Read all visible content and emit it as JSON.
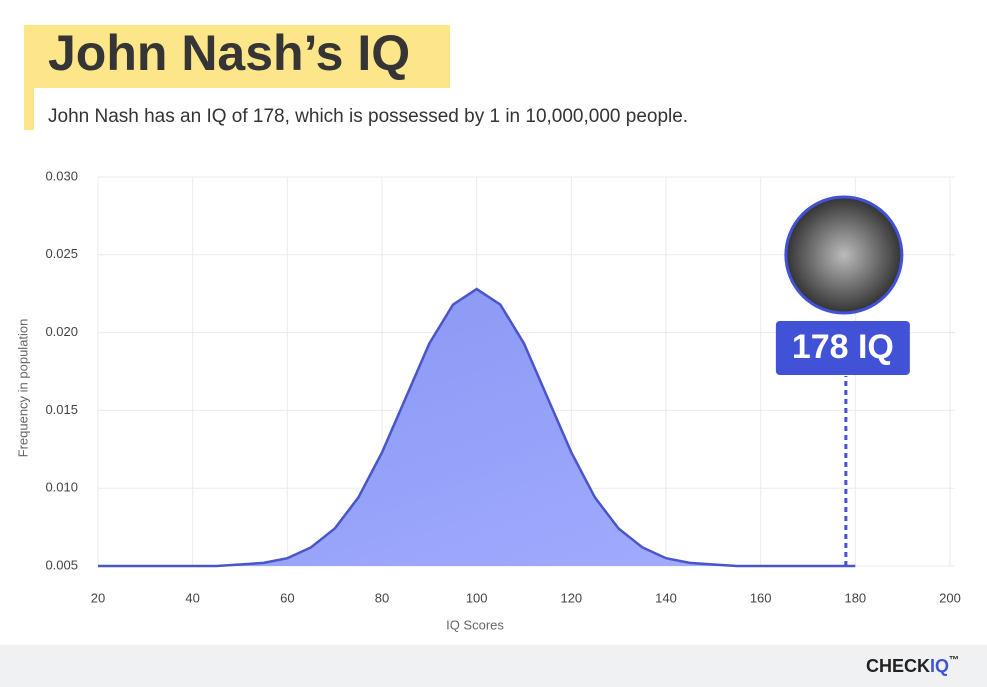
{
  "chart_data": {
    "type": "area",
    "title": "John Nash’s IQ",
    "subtitle": "John Nash has an IQ of 178, which is possessed by 1 in 10,000,000 people.",
    "x_label": "IQ Scores",
    "y_label": "Frequency in population",
    "x": [
      20,
      25,
      30,
      35,
      40,
      45,
      50,
      55,
      60,
      65,
      70,
      75,
      80,
      85,
      90,
      95,
      100,
      105,
      110,
      115,
      120,
      125,
      130,
      135,
      140,
      145,
      150,
      155,
      160,
      165,
      170,
      175,
      180
    ],
    "values": [
      0.005,
      0.005,
      0.005,
      0.005,
      0.005,
      0.005,
      0.0051,
      0.0052,
      0.0055,
      0.0062,
      0.0074,
      0.0094,
      0.0123,
      0.0158,
      0.0193,
      0.0218,
      0.0228,
      0.0218,
      0.0193,
      0.0158,
      0.0123,
      0.0094,
      0.0074,
      0.0062,
      0.0055,
      0.0052,
      0.0051,
      0.005,
      0.005,
      0.005,
      0.005,
      0.005,
      0.005
    ],
    "color": "#4a55c8",
    "xlim": [
      20,
      200
    ],
    "xticks": [
      20,
      40,
      60,
      80,
      100,
      120,
      140,
      160,
      180,
      200
    ],
    "ylim": [
      0.005,
      0.03
    ],
    "yticks": [
      {
        "value": 0.005,
        "label": "0.005"
      },
      {
        "value": 0.01,
        "label": "0.010"
      },
      {
        "value": 0.015,
        "label": "0.015"
      },
      {
        "value": 0.02,
        "label": "0.020"
      },
      {
        "value": 0.025,
        "label": "0.025"
      },
      {
        "value": 0.03,
        "label": "0.030"
      }
    ],
    "grid": true,
    "marker": {
      "x": 178,
      "label": "178 IQ"
    },
    "brand": {
      "part1": "CHECK",
      "part2": "IQ",
      "mark": "™"
    }
  }
}
